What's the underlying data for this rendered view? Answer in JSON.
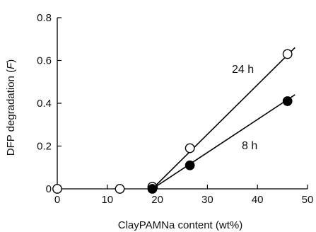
{
  "chart_data": {
    "type": "scatter",
    "xlabel": "ClayPAMNa content (wt%)",
    "ylabel_main": "DFP degradation (",
    "ylabel_var": "F",
    "ylabel_close": ")",
    "xlim": [
      0,
      50
    ],
    "ylim": [
      0,
      0.8
    ],
    "xticks": [
      0,
      10,
      20,
      30,
      40,
      50
    ],
    "yticks": [
      0,
      0.2,
      0.4,
      0.6,
      0.8
    ],
    "xtick_labels": [
      "0",
      "10",
      "20",
      "30",
      "40",
      "50"
    ],
    "ytick_labels": [
      "0",
      "0.2",
      "0.4",
      "0.6",
      "0.8"
    ],
    "series": [
      {
        "name": "24 h",
        "marker": "open-circle",
        "x": [
          0,
          12.5,
          19,
          26.5,
          46
        ],
        "y": [
          0,
          0,
          0.01,
          0.19,
          0.63
        ],
        "fit_line": {
          "x": [
            19,
            47.5
          ],
          "y": [
            0.0,
            0.66
          ]
        }
      },
      {
        "name": "8 h",
        "marker": "filled-circle",
        "x": [
          19,
          26.5,
          46
        ],
        "y": [
          0,
          0.11,
          0.41
        ],
        "fit_line": {
          "x": [
            19,
            47.5
          ],
          "y": [
            0.0,
            0.44
          ]
        }
      }
    ],
    "grid": false,
    "legend": "inline labels"
  }
}
